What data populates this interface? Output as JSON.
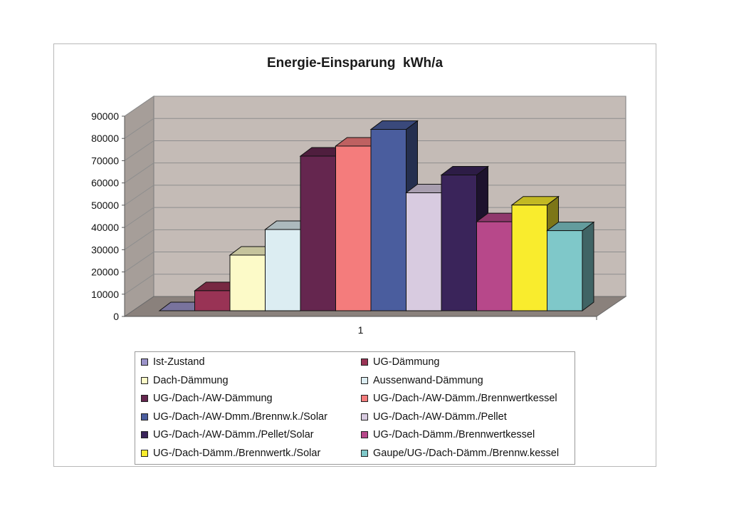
{
  "chart_data": {
    "type": "bar",
    "title": "Energie-Einsparung  kWh/a",
    "categories": [
      "1"
    ],
    "ylim": [
      0,
      90000
    ],
    "yticks": [
      0,
      10000,
      20000,
      30000,
      40000,
      50000,
      60000,
      70000,
      80000,
      90000
    ],
    "grid": true,
    "legend_position": "bottom",
    "series": [
      {
        "name": "Ist-Zustand",
        "values": [
          0
        ],
        "color": "#9b93c9"
      },
      {
        "name": "UG-Dämmung",
        "values": [
          9000
        ],
        "color": "#993355"
      },
      {
        "name": "Dach-Dämmung",
        "values": [
          25000
        ],
        "color": "#fcfac8"
      },
      {
        "name": "Aussenwand-Dämmung",
        "values": [
          36500
        ],
        "color": "#dcedf2"
      },
      {
        "name": "UG-/Dach-/AW-Dämmung",
        "values": [
          69500
        ],
        "color": "#65264f"
      },
      {
        "name": "UG-/Dach-/AW-Dämm./Brennwertkessel",
        "values": [
          74000
        ],
        "color": "#f47c7c"
      },
      {
        "name": "UG-/Dach-/AW-Dmm./Brennw.k./Solar",
        "values": [
          81500
        ],
        "color": "#4a5d9e"
      },
      {
        "name": "UG-/Dach-/AW-Dämm./Pellet",
        "values": [
          53000
        ],
        "color": "#d8cbe0"
      },
      {
        "name": "UG-/Dach-/AW-Dämm./Pellet/Solar",
        "values": [
          61000
        ],
        "color": "#3a245a"
      },
      {
        "name": "UG-/Dach-Dämm./Brennwertkessel",
        "values": [
          40000
        ],
        "color": "#b7488a"
      },
      {
        "name": "UG-/Dach-Dämm./Brennwertk./Solar",
        "values": [
          47500
        ],
        "color": "#f9ec2d"
      },
      {
        "name": "Gaupe/UG-/Dach-Dämm./Brennw.kessel",
        "values": [
          36000
        ],
        "color": "#7fc8c9"
      }
    ]
  }
}
